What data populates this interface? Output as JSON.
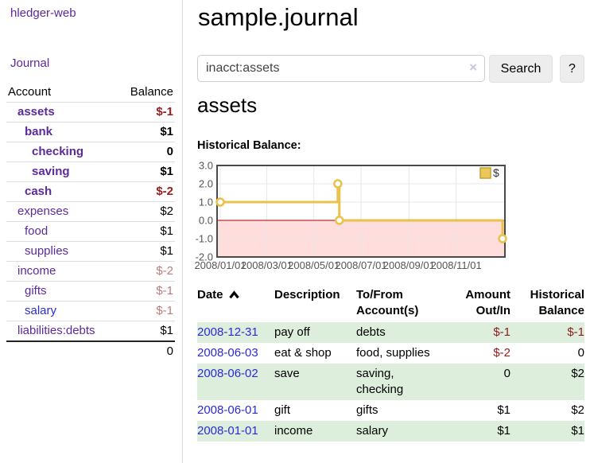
{
  "app": {
    "brand": "hledger-web",
    "nav_journal": "Journal"
  },
  "sidebar": {
    "headers": {
      "account": "Account",
      "balance": "Balance"
    },
    "accounts": [
      {
        "name": "assets",
        "depth": 1,
        "balance": "$-1"
      },
      {
        "name": "bank",
        "depth": 2,
        "balance": "$1"
      },
      {
        "name": "checking",
        "depth": 3,
        "balance": "0"
      },
      {
        "name": "saving",
        "depth": 3,
        "balance": "$1"
      },
      {
        "name": "cash",
        "depth": 2,
        "balance": "$-2"
      },
      {
        "name": "expenses",
        "depth": 1,
        "balance": "$2"
      },
      {
        "name": "food",
        "depth": 2,
        "balance": "$1"
      },
      {
        "name": "supplies",
        "depth": 2,
        "balance": "$1"
      },
      {
        "name": "income",
        "depth": 1,
        "balance": "$-2"
      },
      {
        "name": "gifts",
        "depth": 2,
        "balance": "$-1"
      },
      {
        "name": "salary",
        "depth": 2,
        "balance": "$-1"
      },
      {
        "name": "liabilities:debts",
        "depth": 1,
        "balance": "$1"
      }
    ],
    "total": "0"
  },
  "header": {
    "title": "sample.journal"
  },
  "search": {
    "value": "inacct:assets",
    "clear_label": "×",
    "button": "Search",
    "help": "?"
  },
  "account_page": {
    "heading": "assets",
    "chart_label": "Historical Balance:"
  },
  "chart_data": {
    "type": "line",
    "title": "Historical Balance",
    "step": true,
    "series": [
      {
        "name": "$",
        "x": [
          "2008-01-01",
          "2008-06-01",
          "2008-06-03",
          "2008-12-31"
        ],
        "y": [
          1,
          2,
          0,
          -1
        ]
      }
    ],
    "xmin": "2008-01-01",
    "xmax": "2008-12-31",
    "ylim": [
      -2,
      3
    ],
    "yticks": [
      3.0,
      2.0,
      1.0,
      0.0,
      -1.0,
      -2.0
    ],
    "xticks": [
      "2008/01/01",
      "2008/03/01",
      "2008/05/01",
      "2008/07/01",
      "2008/09/01",
      "2008/11/01"
    ],
    "legend": {
      "label": "$",
      "position": "top-right"
    },
    "colors": {
      "line": "#e8c24a",
      "marker_fill": "#ffffff",
      "negative_region": "#ffdddd",
      "zero_line": "#aa0000",
      "grid": "#e7e7e7",
      "plot_border": "#4a4a4a",
      "tick_text": "#555555"
    }
  },
  "register": {
    "headers": [
      "Date",
      "Description",
      "To/From Account(s)",
      "Amount Out/In",
      "Historical Balance"
    ],
    "rows": [
      {
        "date": "2008-12-31",
        "description": "pay off",
        "accounts": "debts",
        "amount": "$-1",
        "balance": "$-1"
      },
      {
        "date": "2008-06-03",
        "description": "eat & shop",
        "accounts": "food, supplies",
        "amount": "$-2",
        "balance": "0"
      },
      {
        "date": "2008-06-02",
        "description": "save",
        "accounts": "saving, checking",
        "amount": "0",
        "balance": "$2"
      },
      {
        "date": "2008-06-01",
        "description": "gift",
        "accounts": "gifts",
        "amount": "$1",
        "balance": "$2"
      },
      {
        "date": "2008-01-01",
        "description": "income",
        "accounts": "salary",
        "amount": "$1",
        "balance": "$1"
      }
    ]
  },
  "theme": {
    "link_purple": "#5b2a9b",
    "link_blue": "#2b2bd5",
    "negative_strong": "#9c1b1b",
    "negative_muted": "#bb7b7b",
    "register_negative": "#8e1c1c",
    "row_shade_green": "#ddeedd"
  }
}
